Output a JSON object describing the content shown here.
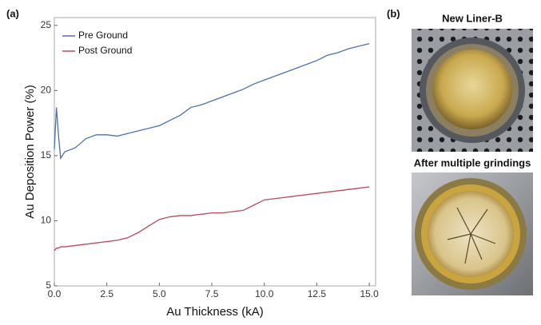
{
  "chart_data": {
    "type": "line",
    "x_label": "Au Thickness (kA)",
    "y_label": "Au Deposition Power (%)",
    "x": [
      0,
      0.1,
      0.2,
      0.3,
      0.5,
      1,
      1.5,
      2,
      2.5,
      3,
      3.5,
      4,
      4.5,
      5,
      5.5,
      6,
      6.5,
      7,
      7.5,
      8,
      8.5,
      9,
      9.5,
      10,
      10.5,
      11,
      11.5,
      12,
      12.5,
      13,
      13.5,
      14,
      14.5,
      15
    ],
    "series": [
      {
        "name": "Pre Ground",
        "color": "#4a72b0",
        "values": [
          15.5,
          18.7,
          16.5,
          14.8,
          15.3,
          15.6,
          16.3,
          16.6,
          16.6,
          16.5,
          16.7,
          16.9,
          17.1,
          17.3,
          17.7,
          18.1,
          18.7,
          18.9,
          19.2,
          19.5,
          19.8,
          20.1,
          20.5,
          20.8,
          21.1,
          21.4,
          21.7,
          22.0,
          22.3,
          22.7,
          22.9,
          23.2,
          23.4,
          23.6
        ]
      },
      {
        "name": "Post Ground",
        "color": "#b94a5a",
        "values": [
          7.7,
          7.9,
          7.9,
          8.0,
          8.0,
          8.1,
          8.2,
          8.3,
          8.4,
          8.5,
          8.7,
          9.1,
          9.6,
          10.1,
          10.3,
          10.4,
          10.4,
          10.5,
          10.6,
          10.6,
          10.7,
          10.8,
          11.2,
          11.6,
          11.7,
          11.8,
          11.9,
          12.0,
          12.1,
          12.2,
          12.3,
          12.4,
          12.5,
          12.6
        ]
      }
    ],
    "xlim": [
      0,
      15.3
    ],
    "ylim": [
      5,
      25.6
    ],
    "xticks": [
      {
        "value": 0,
        "label": "0.0"
      },
      2.5,
      {
        "value": 5,
        "label": "5.0"
      },
      7.5,
      {
        "value": 10,
        "label": "10.0"
      },
      12.5,
      {
        "value": 15,
        "label": "15.0"
      }
    ],
    "yticks": [
      5,
      10,
      15,
      20,
      25
    ],
    "grid": false,
    "legend": "upper left"
  },
  "panel_labels": [
    "(a)",
    "(b)"
  ],
  "photo_captions": [
    "New Liner-B",
    "After multiple grindings"
  ]
}
